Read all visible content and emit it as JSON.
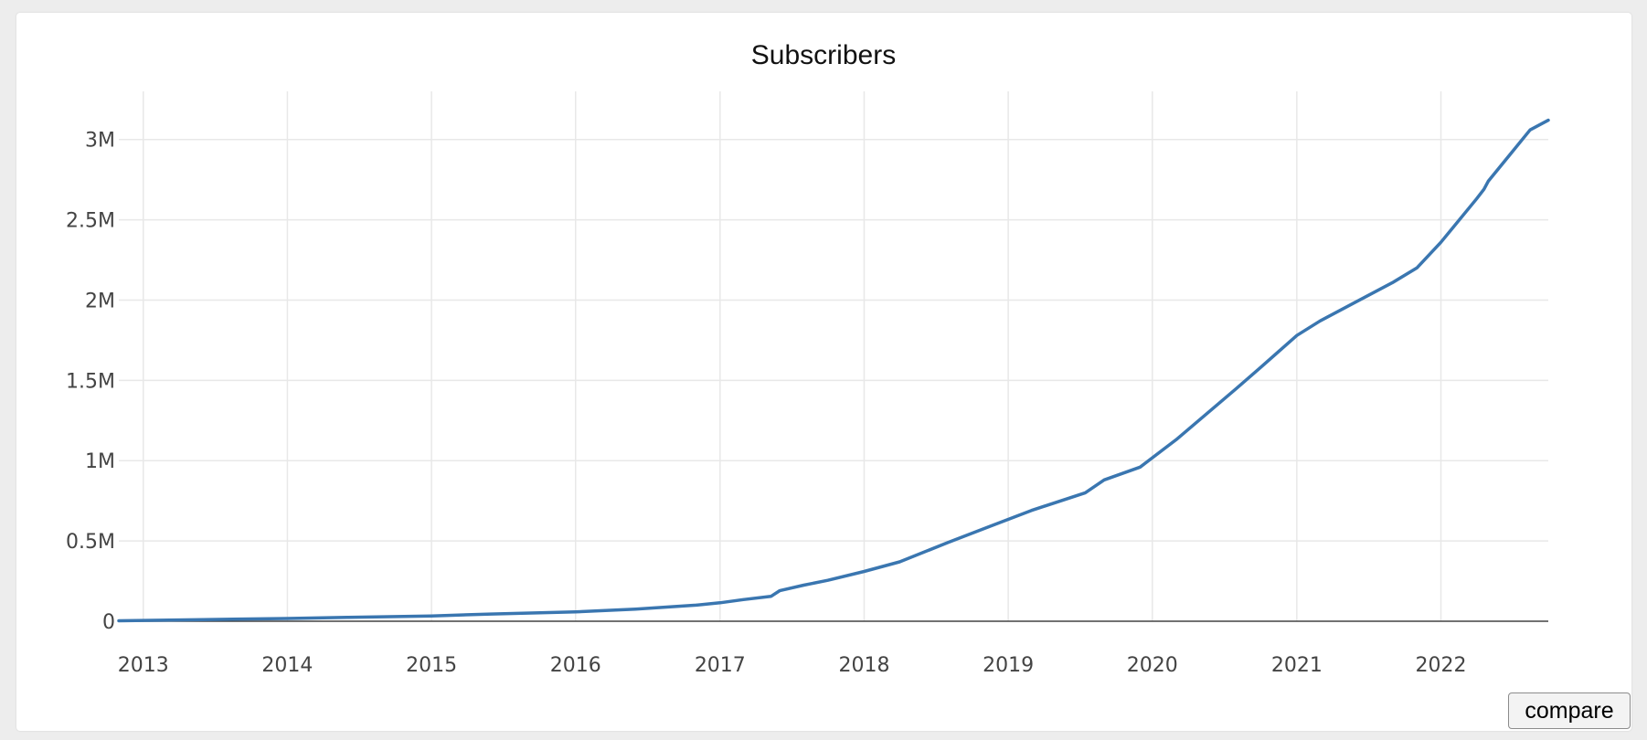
{
  "chart_data": {
    "type": "line",
    "title": "Subscribers",
    "xlabel": "",
    "ylabel": "",
    "x_ticks": [
      "2013",
      "2014",
      "2015",
      "2016",
      "2017",
      "2018",
      "2019",
      "2020",
      "2021",
      "2022"
    ],
    "y_ticks": [
      "0",
      "0.5M",
      "1M",
      "1.5M",
      "2M",
      "2.5M",
      "3M"
    ],
    "y_tick_values": [
      0,
      500000,
      1000000,
      1500000,
      2000000,
      2500000,
      3000000
    ],
    "xlim": [
      "2012-10-31",
      "2022-09-30"
    ],
    "ylim": [
      0,
      3300000
    ],
    "grid": true,
    "line_color": "#3a76b0",
    "series": [
      {
        "x": [
          "2012-10-31",
          "2013-06-01",
          "2014-01-01",
          "2014-06-01",
          "2015-01-01",
          "2015-06-01",
          "2016-01-01",
          "2016-06-01",
          "2016-11-01",
          "2017-01-01",
          "2017-03-01",
          "2017-05-10",
          "2017-06-01",
          "2017-08-01",
          "2017-10-01",
          "2018-01-01",
          "2018-04-01",
          "2018-08-01",
          "2018-11-15",
          "2019-03-01",
          "2019-07-15",
          "2019-09-01",
          "2019-12-01",
          "2020-03-01",
          "2020-08-01",
          "2020-10-01",
          "2021-01-01",
          "2021-03-01",
          "2021-06-01",
          "2021-09-01",
          "2021-11-01",
          "2022-01-01",
          "2022-04-01",
          "2022-04-20",
          "2022-05-01",
          "2022-08-15",
          "2022-09-30"
        ],
        "y": [
          3000,
          10000,
          17000,
          24000,
          33000,
          45000,
          58000,
          75000,
          100000,
          115000,
          135000,
          155000,
          190000,
          225000,
          255000,
          310000,
          370000,
          490000,
          590000,
          690000,
          800000,
          880000,
          960000,
          1130000,
          1450000,
          1580000,
          1780000,
          1870000,
          1990000,
          2110000,
          2200000,
          2360000,
          2630000,
          2690000,
          2740000,
          3060000,
          3120000
        ]
      }
    ]
  },
  "controls": {
    "compare_label": "compare"
  }
}
